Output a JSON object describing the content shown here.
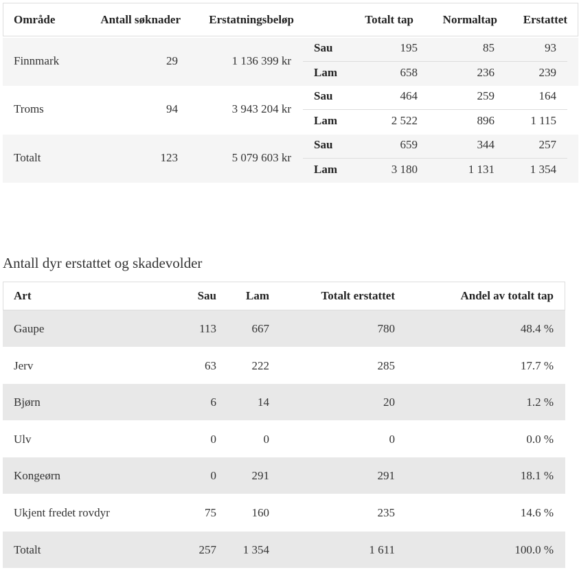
{
  "regions_table": {
    "header": [
      "Område",
      "Antall søknader",
      "Erstatningsbeløp",
      "Totalt tap",
      "Normaltap",
      "Erstattet"
    ],
    "rows": [
      {
        "area": "Finnmark",
        "applications": "29",
        "amount": "1 136 399 kr",
        "sub": [
          [
            "Sau",
            "195",
            "85",
            "93"
          ],
          [
            "Lam",
            "658",
            "236",
            "239"
          ]
        ]
      },
      {
        "area": "Troms",
        "applications": "94",
        "amount": "3 943 204 kr",
        "sub": [
          [
            "Sau",
            "464",
            "259",
            "164"
          ],
          [
            "Lam",
            "2 522",
            "896",
            "1 115"
          ]
        ]
      },
      {
        "area": "Totalt",
        "applications": "123",
        "amount": "5 079 603 kr",
        "sub": [
          [
            "Sau",
            "659",
            "344",
            "257"
          ],
          [
            "Lam",
            "3 180",
            "1 131",
            "1 354"
          ]
        ]
      }
    ]
  },
  "species_table": {
    "title": "Antall dyr erstattet og skadevolder",
    "header": [
      "Art",
      "Sau",
      "Lam",
      "Totalt erstattet",
      "Andel av totalt tap"
    ],
    "rows": [
      [
        "Gaupe",
        "113",
        "667",
        "780",
        "48.4 %"
      ],
      [
        "Jerv",
        "63",
        "222",
        "285",
        "17.7 %"
      ],
      [
        "Bjørn",
        "6",
        "14",
        "20",
        "1.2 %"
      ],
      [
        "Ulv",
        "0",
        "0",
        "0",
        "0.0 %"
      ],
      [
        "Kongeørn",
        "0",
        "291",
        "291",
        "18.1 %"
      ],
      [
        "Ukjent fredet rovdyr",
        "75",
        "160",
        "235",
        "14.6 %"
      ],
      [
        "Totalt",
        "257",
        "1 354",
        "1 611",
        "100.0 %"
      ]
    ]
  }
}
